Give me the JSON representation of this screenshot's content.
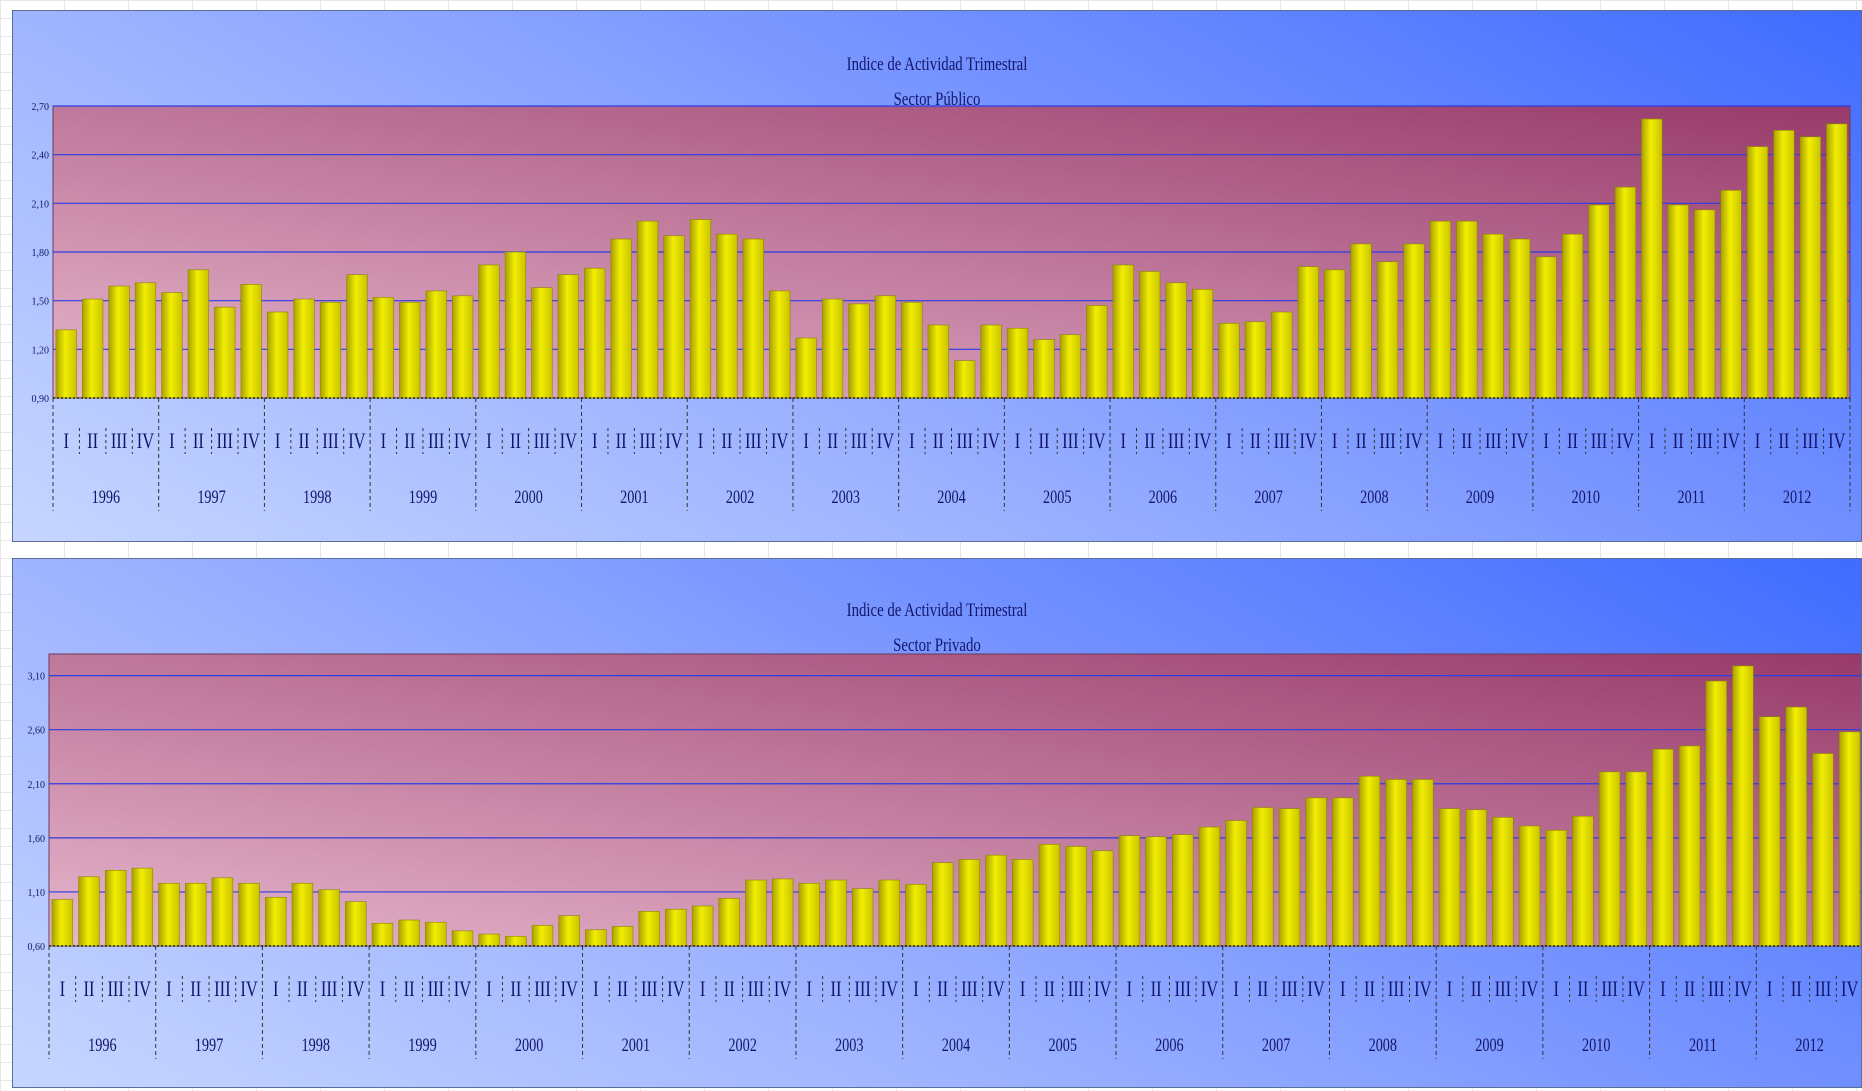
{
  "colors": {
    "bar": "#f2ee00",
    "bar_dark": "#a8a000",
    "plot_top": "#983a6a",
    "plot_bottom": "#e6b6cc",
    "grid": "#2d3de0",
    "text": "#12166b"
  },
  "chart_data": [
    {
      "type": "bar",
      "title": "Indice de Actividad Trimestral",
      "subtitle": "Sector Público",
      "years": [
        "1996",
        "1997",
        "1998",
        "1999",
        "2000",
        "2001",
        "2002",
        "2003",
        "2004",
        "2005",
        "2006",
        "2007",
        "2008",
        "2009",
        "2010",
        "2011",
        "2012"
      ],
      "quarters": [
        "I",
        "II",
        "III",
        "IV"
      ],
      "yticks": [
        "0,90",
        "1,20",
        "1,50",
        "1,80",
        "2,10",
        "2,40",
        "2,70"
      ],
      "ylim": [
        0.9,
        2.7
      ],
      "grid": true,
      "values": [
        1.32,
        1.51,
        1.59,
        1.61,
        1.55,
        1.69,
        1.46,
        1.6,
        1.43,
        1.51,
        1.49,
        1.66,
        1.52,
        1.49,
        1.56,
        1.53,
        1.72,
        1.8,
        1.58,
        1.66,
        1.7,
        1.88,
        1.99,
        1.9,
        2.0,
        1.91,
        1.88,
        1.56,
        1.27,
        1.51,
        1.48,
        1.53,
        1.49,
        1.35,
        1.13,
        1.35,
        1.33,
        1.26,
        1.29,
        1.47,
        1.72,
        1.68,
        1.61,
        1.57,
        1.36,
        1.37,
        1.43,
        1.71,
        1.69,
        1.85,
        1.74,
        1.85,
        1.99,
        1.99,
        1.91,
        1.88,
        1.77,
        1.91,
        2.09,
        2.2,
        2.62,
        2.09,
        2.06,
        2.18,
        2.45,
        2.55,
        2.51,
        2.59
      ]
    },
    {
      "type": "bar",
      "title": "Indice de Actividad Trimestral",
      "subtitle": "Sector Privado",
      "years": [
        "1996",
        "1997",
        "1998",
        "1999",
        "2000",
        "2001",
        "2002",
        "2003",
        "2004",
        "2005",
        "2006",
        "2007",
        "2008",
        "2009",
        "2010",
        "2011",
        "2012"
      ],
      "quarters": [
        "I",
        "II",
        "III",
        "IV"
      ],
      "yticks": [
        "0,60",
        "1,10",
        "1,60",
        "2,10",
        "2,60",
        "3,10"
      ],
      "ylim": [
        0.6,
        3.3
      ],
      "grid": true,
      "values": [
        1.03,
        1.24,
        1.3,
        1.32,
        1.18,
        1.18,
        1.23,
        1.18,
        1.05,
        1.18,
        1.12,
        1.01,
        0.81,
        0.84,
        0.82,
        0.74,
        0.71,
        0.69,
        0.79,
        0.88,
        0.75,
        0.78,
        0.92,
        0.94,
        0.97,
        1.04,
        1.21,
        1.22,
        1.18,
        1.21,
        1.13,
        1.21,
        1.17,
        1.37,
        1.4,
        1.44,
        1.4,
        1.54,
        1.52,
        1.48,
        1.62,
        1.61,
        1.63,
        1.7,
        1.76,
        1.88,
        1.87,
        1.97,
        1.97,
        2.17,
        2.14,
        2.14,
        1.87,
        1.86,
        1.79,
        1.71,
        1.67,
        1.8,
        2.21,
        2.21,
        2.42,
        2.45,
        3.05,
        3.19,
        2.72,
        2.81,
        2.38,
        2.58
      ]
    }
  ]
}
